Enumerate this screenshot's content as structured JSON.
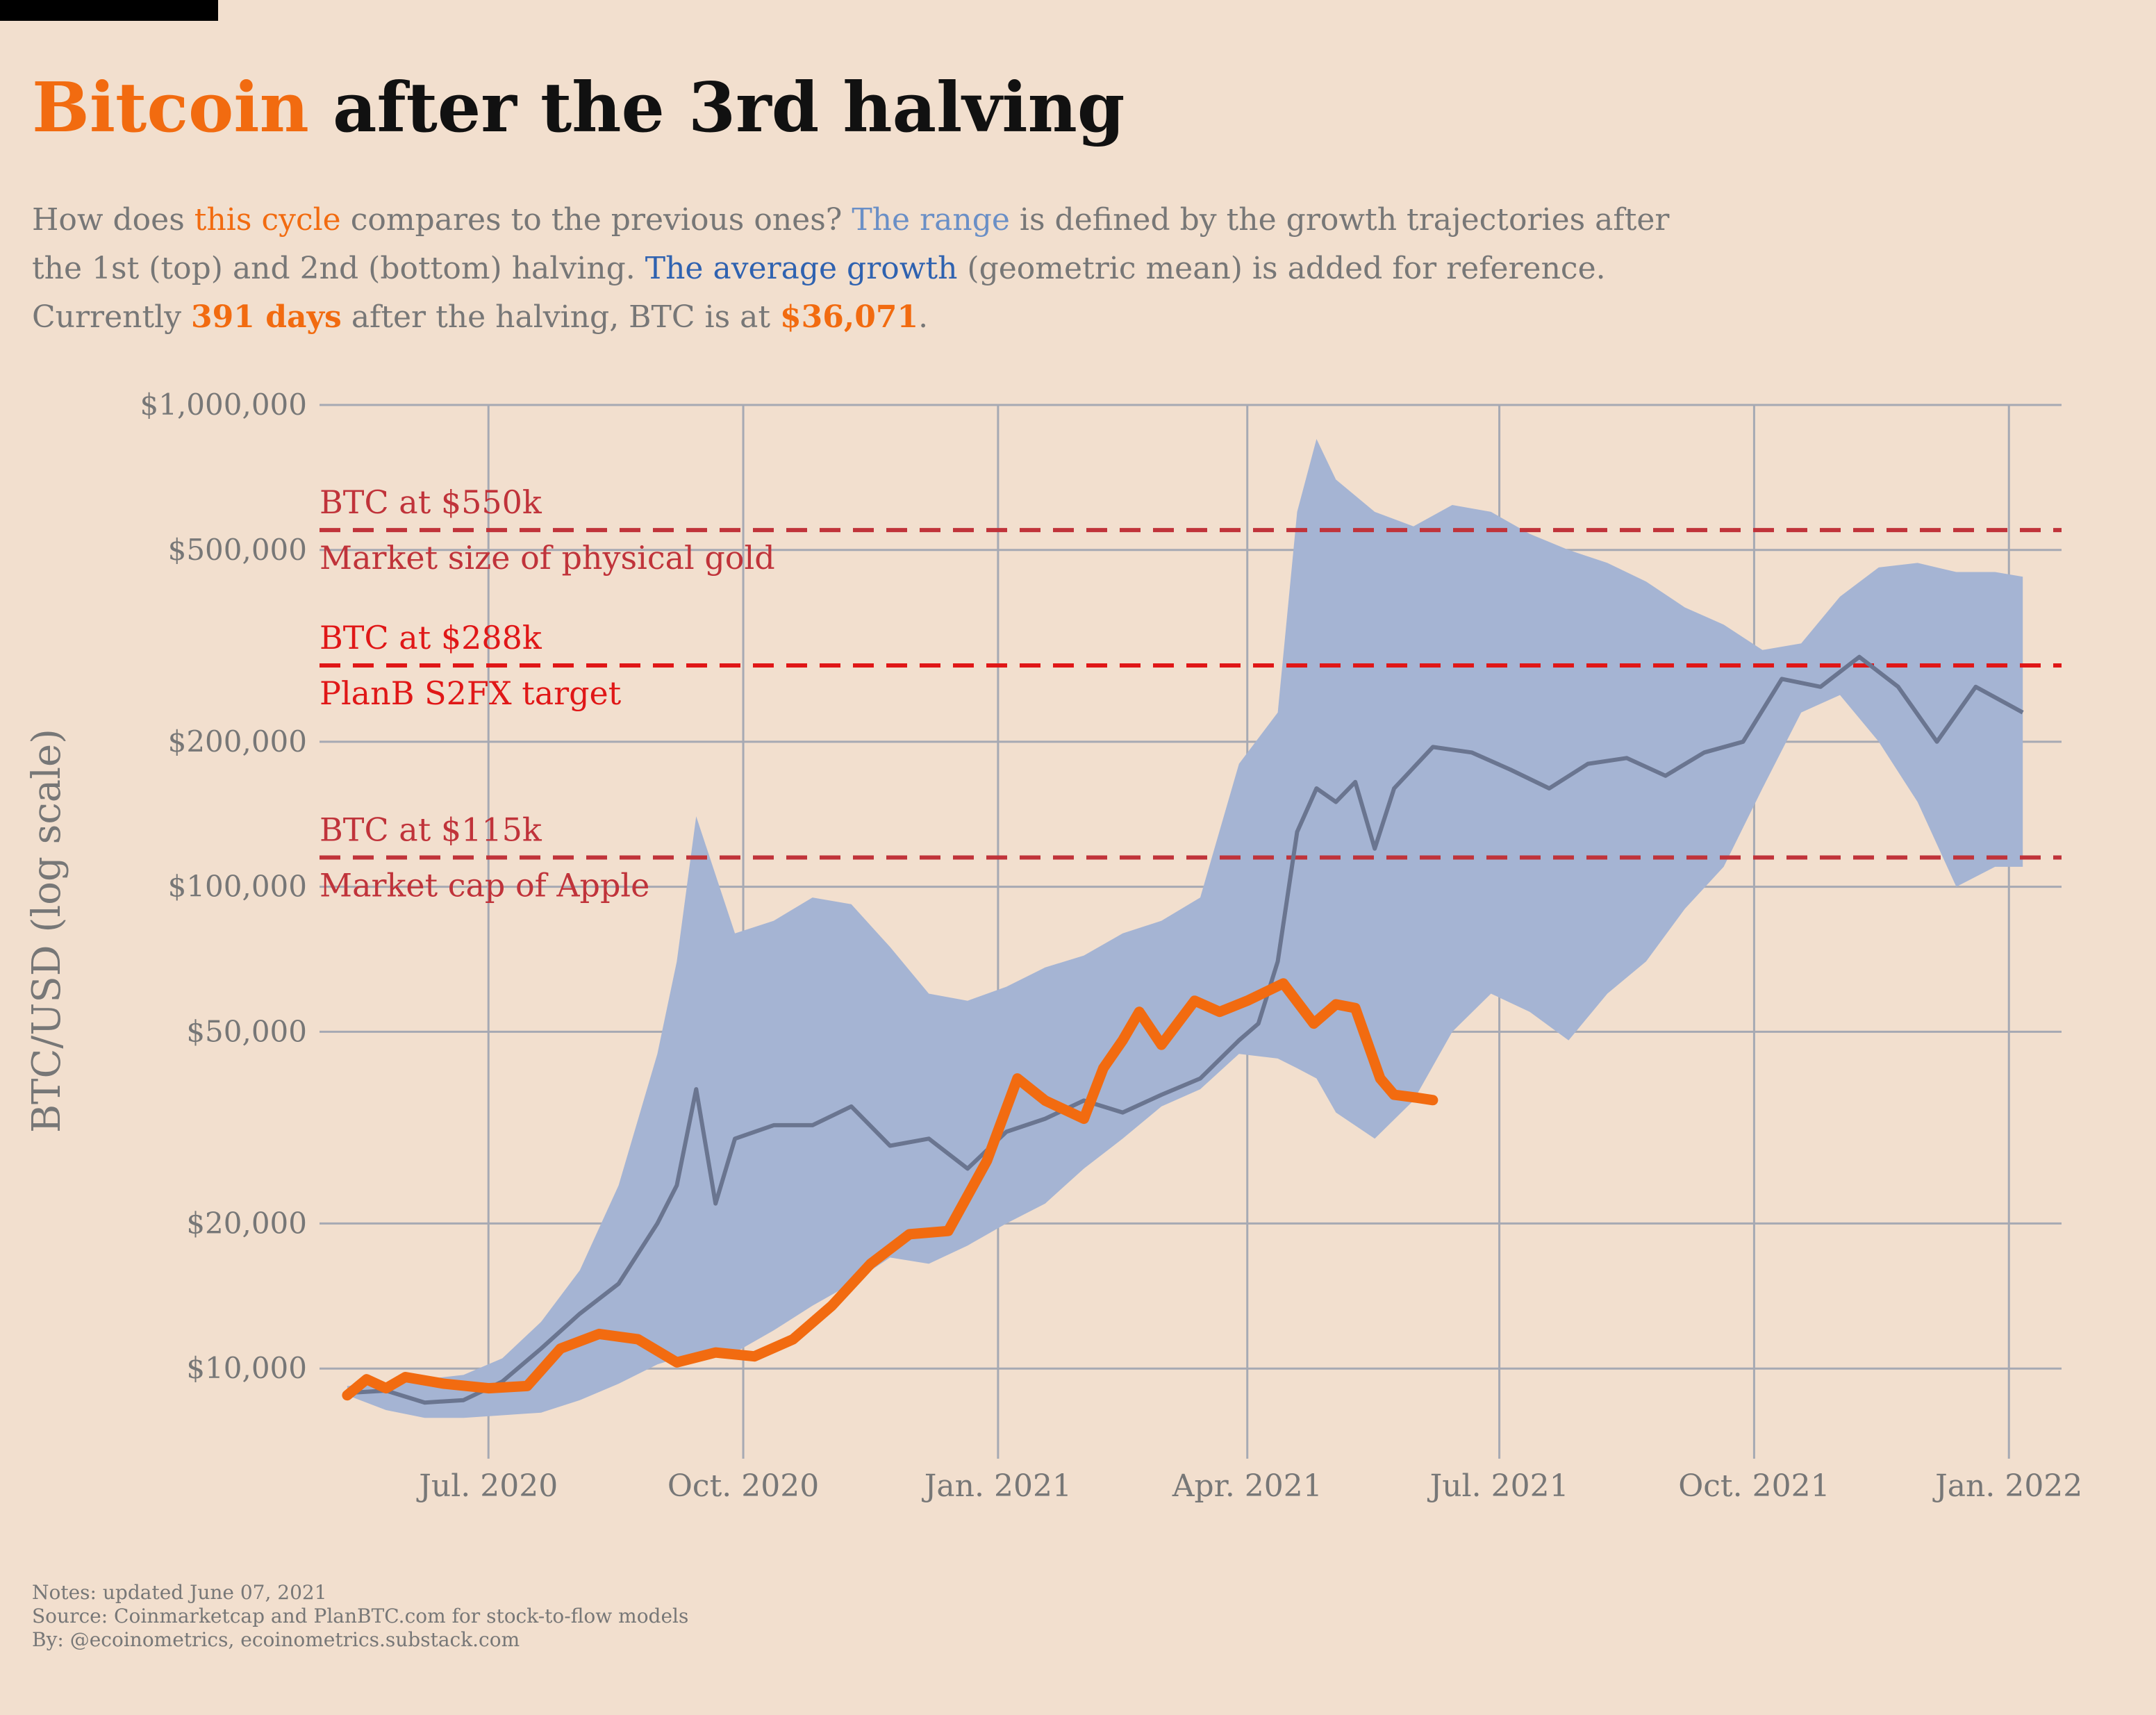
{
  "title": {
    "accent": "Bitcoin",
    "rest": " after the 3rd halving"
  },
  "subtitle": {
    "p1": "How does ",
    "cycle": "this cycle",
    "p2": " compares to the previous ones? ",
    "range": "The range",
    "p3": " is defined by the growth trajectories after",
    "p4": "the 1st (top) and 2nd (bottom) halving. ",
    "avg": "The average growth",
    "p5": " (geometric mean) is added for reference.",
    "p6": "Currently ",
    "days": "391 days",
    "p7": " after the halving, BTC is at ",
    "price": "$36,071",
    "p8": "."
  },
  "notes": {
    "line1": "Notes: updated June 07, 2021",
    "line2": "Source: Coinmarketcap and PlanBTC.com for stock-to-flow models",
    "line3": "By: @ecoinometrics, ecoinometrics.substack.com"
  },
  "colors": {
    "background": "#f2dfce",
    "accent": "#f26b10",
    "range_fill": "#a5b4d3",
    "average_line": "#6a7590",
    "grid": "#a6a9b3",
    "ref_dark_red": "#c0333a",
    "ref_red": "#e01717",
    "axis_text": "#777777"
  },
  "chart_data": {
    "type": "line",
    "ylabel": "BTC/USD (log scale)",
    "yscale": "log",
    "ylim": [
      6500,
      1000000
    ],
    "xlim": [
      "2020-05-01",
      "2022-01-20"
    ],
    "y_ticks": [
      {
        "value": 10000,
        "label": "$10,000"
      },
      {
        "value": 20000,
        "label": "$20,000"
      },
      {
        "value": 50000,
        "label": "$50,000"
      },
      {
        "value": 100000,
        "label": "$100,000"
      },
      {
        "value": 200000,
        "label": "$200,000"
      },
      {
        "value": 500000,
        "label": "$500,000"
      },
      {
        "value": 1000000,
        "label": "$1,000,000"
      }
    ],
    "x_ticks": [
      {
        "date": "2020-07-01",
        "label": "Jul. 2020"
      },
      {
        "date": "2020-10-01",
        "label": "Oct. 2020"
      },
      {
        "date": "2021-01-01",
        "label": "Jan. 2021"
      },
      {
        "date": "2021-04-01",
        "label": "Apr. 2021"
      },
      {
        "date": "2021-07-01",
        "label": "Jul. 2021"
      },
      {
        "date": "2021-10-01",
        "label": "Oct. 2021"
      },
      {
        "date": "2022-01-01",
        "label": "Jan. 2022"
      }
    ],
    "reference_lines": [
      {
        "value": 550000,
        "label_top": "BTC at $550k",
        "label_bottom": "Market size of physical gold",
        "color": "#c0333a"
      },
      {
        "value": 288000,
        "label_top": "BTC at $288k",
        "label_bottom": "PlanB S2FX target",
        "color": "#e01717"
      },
      {
        "value": 115000,
        "label_top": "BTC at $115k",
        "label_bottom": "Market cap of Apple",
        "color": "#c0333a"
      }
    ],
    "series": [
      {
        "name": "Range (1st halving top, 2nd halving bottom)",
        "kind": "band",
        "dates": [
          "2020-05-11",
          "2020-05-25",
          "2020-06-08",
          "2020-06-22",
          "2020-07-06",
          "2020-07-20",
          "2020-08-03",
          "2020-08-17",
          "2020-08-31",
          "2020-09-07",
          "2020-09-14",
          "2020-09-28",
          "2020-10-12",
          "2020-10-26",
          "2020-11-09",
          "2020-11-23",
          "2020-12-07",
          "2020-12-21",
          "2021-01-04",
          "2021-01-18",
          "2021-02-01",
          "2021-02-15",
          "2021-03-01",
          "2021-03-15",
          "2021-03-29",
          "2021-04-12",
          "2021-04-19",
          "2021-04-26",
          "2021-05-03",
          "2021-05-17",
          "2021-05-31",
          "2021-06-14",
          "2021-06-28",
          "2021-07-12",
          "2021-07-26",
          "2021-08-09",
          "2021-08-23",
          "2021-09-06",
          "2021-09-20",
          "2021-10-04",
          "2021-10-18",
          "2021-11-01",
          "2021-11-15",
          "2021-11-29",
          "2021-12-13",
          "2021-12-27",
          "2022-01-06"
        ],
        "upper": [
          9200,
          9300,
          9500,
          9700,
          10500,
          12500,
          16000,
          24000,
          45000,
          70000,
          140000,
          80000,
          85000,
          95000,
          92000,
          75000,
          60000,
          58000,
          62000,
          68000,
          72000,
          80000,
          85000,
          95000,
          180000,
          230000,
          600000,
          850000,
          700000,
          600000,
          560000,
          620000,
          600000,
          540000,
          500000,
          470000,
          430000,
          380000,
          350000,
          310000,
          320000,
          400000,
          460000,
          470000,
          450000,
          450000,
          440000
        ],
        "lower": [
          8800,
          8200,
          7900,
          7900,
          8000,
          8100,
          8600,
          9300,
          10200,
          10500,
          10500,
          10800,
          12000,
          13500,
          15000,
          17000,
          16500,
          18000,
          20000,
          22000,
          26000,
          30000,
          35000,
          38000,
          45000,
          44000,
          42000,
          40000,
          34000,
          30000,
          36000,
          50000,
          60000,
          55000,
          48000,
          60000,
          70000,
          90000,
          110000,
          160000,
          230000,
          250000,
          200000,
          150000,
          100000,
          110000,
          110000
        ]
      },
      {
        "name": "Average growth (geometric mean)",
        "kind": "line",
        "dates": [
          "2020-05-11",
          "2020-05-25",
          "2020-06-08",
          "2020-06-22",
          "2020-07-06",
          "2020-07-20",
          "2020-08-03",
          "2020-08-17",
          "2020-08-31",
          "2020-09-07",
          "2020-09-14",
          "2020-09-21",
          "2020-09-28",
          "2020-10-12",
          "2020-10-26",
          "2020-11-09",
          "2020-11-23",
          "2020-12-07",
          "2020-12-21",
          "2021-01-04",
          "2021-01-18",
          "2021-02-01",
          "2021-02-15",
          "2021-03-01",
          "2021-03-15",
          "2021-03-29",
          "2021-04-05",
          "2021-04-12",
          "2021-04-19",
          "2021-04-26",
          "2021-05-03",
          "2021-05-10",
          "2021-05-17",
          "2021-05-24",
          "2021-06-07",
          "2021-06-21",
          "2021-07-05",
          "2021-07-19",
          "2021-08-02",
          "2021-08-16",
          "2021-08-30",
          "2021-09-13",
          "2021-09-27",
          "2021-10-11",
          "2021-10-25",
          "2021-11-08",
          "2021-11-22",
          "2021-12-06",
          "2021-12-20",
          "2022-01-06"
        ],
        "values": [
          8900,
          9000,
          8500,
          8600,
          9400,
          11000,
          13000,
          15000,
          20000,
          24000,
          38000,
          22000,
          30000,
          32000,
          32000,
          35000,
          29000,
          30000,
          26000,
          31000,
          33000,
          36000,
          34000,
          37000,
          40000,
          48000,
          52000,
          70000,
          130000,
          160000,
          150000,
          165000,
          120000,
          160000,
          195000,
          190000,
          175000,
          160000,
          180000,
          185000,
          170000,
          190000,
          200000,
          270000,
          260000,
          300000,
          260000,
          200000,
          260000,
          230000
        ]
      },
      {
        "name": "This cycle",
        "kind": "line",
        "dates": [
          "2020-05-11",
          "2020-05-18",
          "2020-05-25",
          "2020-06-01",
          "2020-06-15",
          "2020-07-01",
          "2020-07-15",
          "2020-07-27",
          "2020-08-10",
          "2020-08-24",
          "2020-09-07",
          "2020-09-21",
          "2020-10-05",
          "2020-10-19",
          "2020-11-02",
          "2020-11-16",
          "2020-11-30",
          "2020-12-14",
          "2020-12-28",
          "2021-01-08",
          "2021-01-18",
          "2021-02-01",
          "2021-02-08",
          "2021-02-15",
          "2021-02-21",
          "2021-03-01",
          "2021-03-13",
          "2021-03-22",
          "2021-04-01",
          "2021-04-14",
          "2021-04-25",
          "2021-05-03",
          "2021-05-10",
          "2021-05-19",
          "2021-05-24",
          "2021-06-01",
          "2021-06-07"
        ],
        "values": [
          8800,
          9500,
          9100,
          9600,
          9300,
          9100,
          9200,
          11000,
          11800,
          11500,
          10300,
          10800,
          10600,
          11500,
          13500,
          16500,
          19000,
          19300,
          27000,
          40000,
          36000,
          33000,
          42000,
          48000,
          55000,
          47000,
          58000,
          55000,
          58000,
          63000,
          52000,
          57000,
          56000,
          40000,
          37000,
          36500,
          36071
        ]
      }
    ]
  }
}
